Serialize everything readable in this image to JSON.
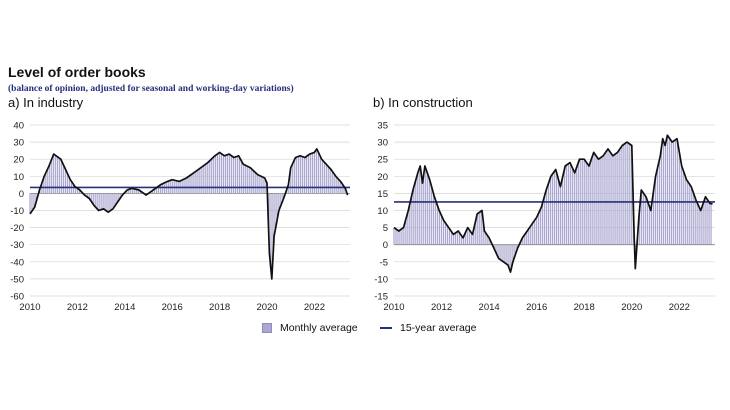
{
  "figure": {
    "title": "Level of order books",
    "subtitle": "(balance of opinion, adjusted for seasonal and working-day variations)",
    "legend": {
      "monthly": "Monthly average",
      "avg15": "15-year average"
    },
    "colors": {
      "bar": "#a9a7cf",
      "barStroke": "#8f8cc0",
      "line": "#111111",
      "avg": "#27307a",
      "grid": "#d6d6d6"
    }
  },
  "chart_data": [
    {
      "type": "bar",
      "panel": "a) In industry",
      "ylim": [
        -60,
        40
      ],
      "yticks": [
        40,
        30,
        20,
        10,
        0,
        -10,
        -20,
        -30,
        -40,
        -50,
        -60
      ],
      "xlim": [
        2010,
        2023.5
      ],
      "xticks": [
        2010,
        2012,
        2014,
        2016,
        2018,
        2020,
        2022
      ],
      "average_15y": 3.5,
      "series": [
        {
          "name": "Monthly average",
          "points": [
            [
              2010,
              -12
            ],
            [
              2010.2,
              -8
            ],
            [
              2010.4,
              2
            ],
            [
              2010.6,
              10
            ],
            [
              2010.8,
              16
            ],
            [
              2011,
              23
            ],
            [
              2011.1,
              22
            ],
            [
              2011.3,
              20
            ],
            [
              2011.5,
              14
            ],
            [
              2011.7,
              8
            ],
            [
              2011.9,
              4
            ],
            [
              2012.1,
              2
            ],
            [
              2012.3,
              -1
            ],
            [
              2012.5,
              -3
            ],
            [
              2012.7,
              -7
            ],
            [
              2012.9,
              -10
            ],
            [
              2013.1,
              -9
            ],
            [
              2013.3,
              -11
            ],
            [
              2013.5,
              -9
            ],
            [
              2013.7,
              -5
            ],
            [
              2013.9,
              -1
            ],
            [
              2014.1,
              2
            ],
            [
              2014.3,
              3
            ],
            [
              2014.6,
              2
            ],
            [
              2014.9,
              -1
            ],
            [
              2015.1,
              1
            ],
            [
              2015.3,
              3
            ],
            [
              2015.5,
              5
            ],
            [
              2015.8,
              7
            ],
            [
              2016,
              8
            ],
            [
              2016.3,
              7
            ],
            [
              2016.6,
              9
            ],
            [
              2016.9,
              12
            ],
            [
              2017.2,
              15
            ],
            [
              2017.5,
              18
            ],
            [
              2017.8,
              22
            ],
            [
              2018,
              24
            ],
            [
              2018.2,
              22
            ],
            [
              2018.4,
              23
            ],
            [
              2018.6,
              21
            ],
            [
              2018.8,
              22
            ],
            [
              2019,
              17
            ],
            [
              2019.3,
              15
            ],
            [
              2019.6,
              11
            ],
            [
              2019.9,
              9
            ],
            [
              2020,
              6
            ],
            [
              2020.1,
              -35
            ],
            [
              2020.2,
              -50
            ],
            [
              2020.3,
              -25
            ],
            [
              2020.5,
              -10
            ],
            [
              2020.7,
              -3
            ],
            [
              2020.9,
              5
            ],
            [
              2021,
              15
            ],
            [
              2021.2,
              21
            ],
            [
              2021.4,
              22
            ],
            [
              2021.6,
              21
            ],
            [
              2021.8,
              23
            ],
            [
              2022,
              24
            ],
            [
              2022.1,
              26
            ],
            [
              2022.3,
              20
            ],
            [
              2022.5,
              17
            ],
            [
              2022.7,
              14
            ],
            [
              2022.9,
              10
            ],
            [
              2023.1,
              7
            ],
            [
              2023.3,
              3
            ],
            [
              2023.4,
              -1
            ]
          ]
        }
      ]
    },
    {
      "type": "bar",
      "panel": "b) In construction",
      "ylim": [
        -15,
        35
      ],
      "yticks": [
        35,
        30,
        25,
        20,
        15,
        10,
        5,
        0,
        -5,
        -10,
        -15
      ],
      "xlim": [
        2010,
        2023.5
      ],
      "xticks": [
        2010,
        2012,
        2014,
        2016,
        2018,
        2020,
        2022
      ],
      "average_15y": 12.5,
      "series": [
        {
          "name": "Monthly average",
          "points": [
            [
              2010,
              5
            ],
            [
              2010.2,
              4
            ],
            [
              2010.4,
              5
            ],
            [
              2010.6,
              10
            ],
            [
              2010.8,
              16
            ],
            [
              2011,
              21
            ],
            [
              2011.1,
              23
            ],
            [
              2011.2,
              18
            ],
            [
              2011.3,
              23
            ],
            [
              2011.5,
              19
            ],
            [
              2011.7,
              14
            ],
            [
              2011.9,
              10
            ],
            [
              2012.1,
              7
            ],
            [
              2012.3,
              5
            ],
            [
              2012.5,
              3
            ],
            [
              2012.7,
              4
            ],
            [
              2012.9,
              2
            ],
            [
              2013.1,
              5
            ],
            [
              2013.3,
              3
            ],
            [
              2013.5,
              9
            ],
            [
              2013.7,
              10
            ],
            [
              2013.8,
              4
            ],
            [
              2014,
              2
            ],
            [
              2014.2,
              -1
            ],
            [
              2014.4,
              -4
            ],
            [
              2014.6,
              -5
            ],
            [
              2014.8,
              -6
            ],
            [
              2014.9,
              -8
            ],
            [
              2015,
              -5
            ],
            [
              2015.2,
              -1
            ],
            [
              2015.4,
              2
            ],
            [
              2015.6,
              4
            ],
            [
              2015.8,
              6
            ],
            [
              2016,
              8
            ],
            [
              2016.2,
              11
            ],
            [
              2016.4,
              16
            ],
            [
              2016.6,
              20
            ],
            [
              2016.8,
              22
            ],
            [
              2017,
              17
            ],
            [
              2017.2,
              23
            ],
            [
              2017.4,
              24
            ],
            [
              2017.6,
              21
            ],
            [
              2017.8,
              25
            ],
            [
              2018,
              25
            ],
            [
              2018.2,
              23
            ],
            [
              2018.4,
              27
            ],
            [
              2018.6,
              25
            ],
            [
              2018.8,
              26
            ],
            [
              2019,
              28
            ],
            [
              2019.2,
              26
            ],
            [
              2019.4,
              27
            ],
            [
              2019.6,
              29
            ],
            [
              2019.8,
              30
            ],
            [
              2020,
              29
            ],
            [
              2020.1,
              2
            ],
            [
              2020.15,
              -7
            ],
            [
              2020.3,
              8
            ],
            [
              2020.4,
              16
            ],
            [
              2020.6,
              14
            ],
            [
              2020.8,
              10
            ],
            [
              2021,
              20
            ],
            [
              2021.2,
              26
            ],
            [
              2021.3,
              31
            ],
            [
              2021.4,
              29
            ],
            [
              2021.5,
              32
            ],
            [
              2021.7,
              30
            ],
            [
              2021.9,
              31
            ],
            [
              2022.1,
              23
            ],
            [
              2022.3,
              19
            ],
            [
              2022.5,
              17
            ],
            [
              2022.7,
              13
            ],
            [
              2022.9,
              10
            ],
            [
              2023.1,
              14
            ],
            [
              2023.3,
              12
            ],
            [
              2023.4,
              12
            ]
          ]
        }
      ]
    }
  ],
  "panels": [
    {
      "title": "a)  In industry"
    },
    {
      "title": "b)  In construction"
    }
  ]
}
